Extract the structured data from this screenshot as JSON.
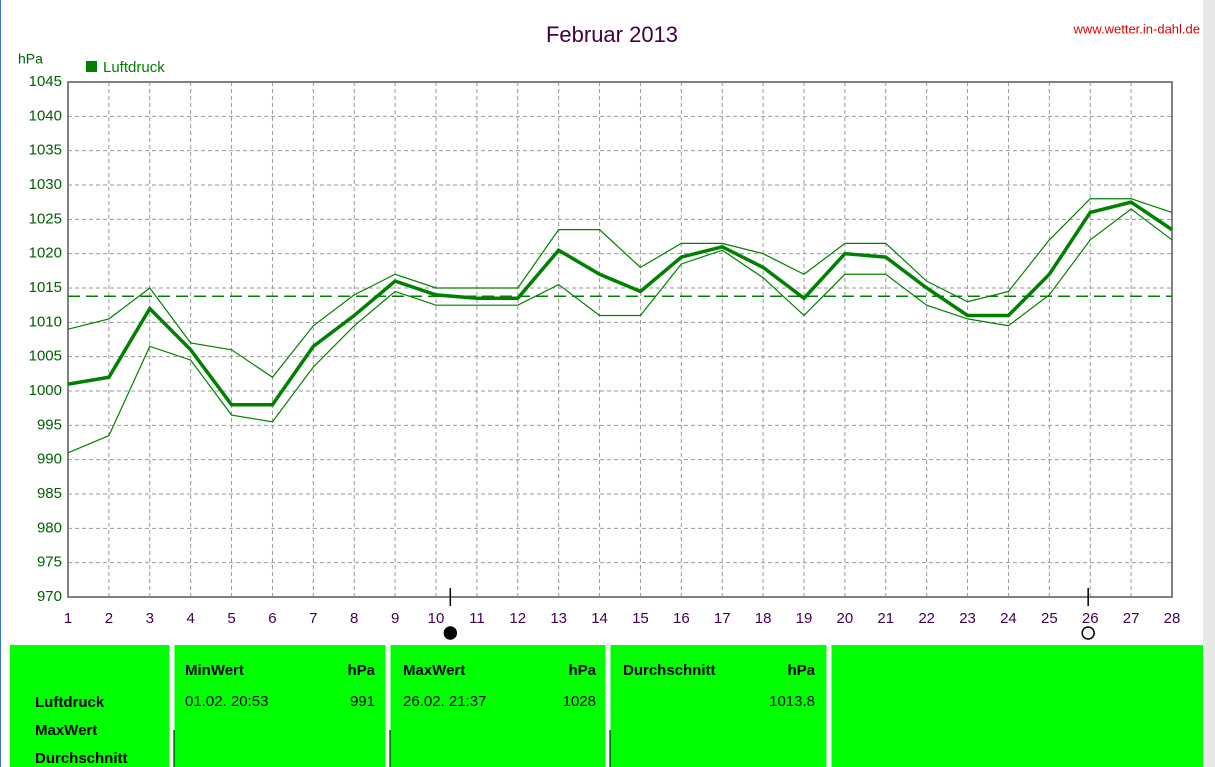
{
  "chart_data": {
    "type": "line",
    "title": "Februar 2013",
    "source": "www.wetter.in-dahl.de",
    "ylabel": "hPa",
    "x": [
      1,
      2,
      3,
      4,
      5,
      6,
      7,
      8,
      9,
      10,
      11,
      12,
      13,
      14,
      15,
      16,
      17,
      18,
      19,
      20,
      21,
      22,
      23,
      24,
      25,
      26,
      27,
      28
    ],
    "series": [
      {
        "name": "Luftdruck",
        "color": "#008000",
        "values": [
          1001,
          1002,
          1012,
          1006,
          998,
          998,
          1006.5,
          1011,
          1016,
          1014,
          1013.5,
          1013.5,
          1020.5,
          1017,
          1014.5,
          1019.5,
          1021,
          1018,
          1013.5,
          1020,
          1019.5,
          1015,
          1011,
          1011,
          1017,
          1026,
          1027.5,
          1023.5
        ]
      },
      {
        "color": "#008000",
        "values": [
          1009,
          1010.5,
          1015,
          1007,
          1006,
          1002,
          1009.5,
          1014,
          1017,
          1015,
          1015,
          1015,
          1023.5,
          1023.5,
          1018,
          1021.5,
          1021.5,
          1020,
          1017,
          1021.5,
          1021.5,
          1016,
          1013,
          1014.5,
          1022,
          1028,
          1028,
          1026
        ]
      },
      {
        "color": "#008000",
        "values": [
          991,
          993.5,
          1006.5,
          1004.5,
          996.5,
          995.5,
          1003.5,
          1009.5,
          1014.5,
          1012.5,
          1012.5,
          1012.5,
          1015.5,
          1011,
          1011,
          1018.5,
          1020.5,
          1016.5,
          1011,
          1017,
          1017,
          1012.5,
          1010.5,
          1009.5,
          1014,
          1022,
          1026.5,
          1022
        ]
      }
    ],
    "markers": [
      {
        "x": 10.35,
        "filled": true
      },
      {
        "x": 25.95,
        "filled": false
      }
    ],
    "xlim": [
      1,
      28
    ],
    "xticks": [
      1,
      2,
      3,
      4,
      5,
      6,
      7,
      8,
      9,
      10,
      11,
      12,
      13,
      14,
      15,
      16,
      17,
      18,
      19,
      20,
      21,
      22,
      23,
      24,
      25,
      26,
      27,
      28
    ],
    "ylim": [
      970,
      1045
    ],
    "yticks": [
      970,
      975,
      980,
      985,
      990,
      995,
      1000,
      1005,
      1010,
      1015,
      1020,
      1025,
      1030,
      1035,
      1040,
      1045
    ],
    "grid": true
  },
  "table": {
    "row_labels": [
      "Luftdruck",
      "MaxWert",
      "Durchschnitt"
    ],
    "columns": [
      {
        "header": "MinWert",
        "unit": "hPa",
        "time": "01.02. 20:53",
        "value": 991
      },
      {
        "header": "MaxWert",
        "unit": "hPa",
        "time": "26.02. 21:37",
        "value": 1028
      },
      {
        "header": "Durchschnitt",
        "unit": "hPa",
        "value": 1013.8
      }
    ]
  }
}
